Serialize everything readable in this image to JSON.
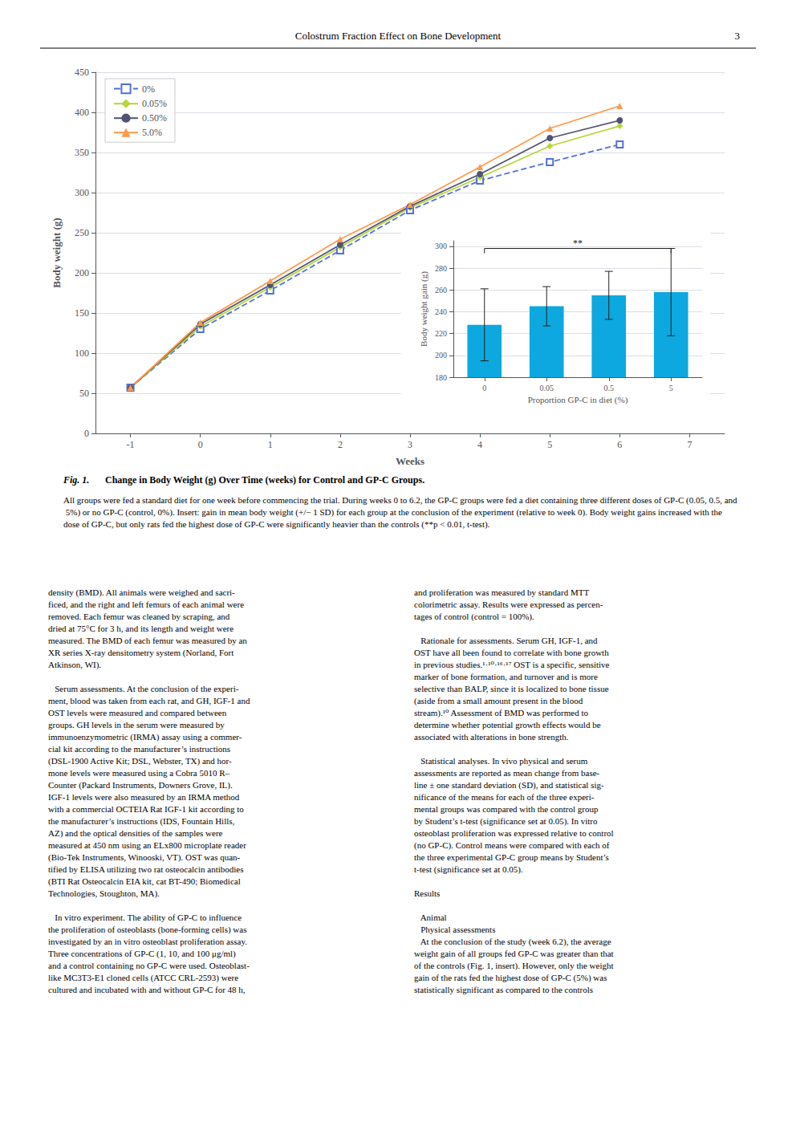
{
  "page_title": "Colostrum Fraction Effect on Bone Development",
  "page_number": "3",
  "chart_data": [
    {
      "type": "line",
      "xlabel": "Weeks",
      "ylabel": "Body weight (g)",
      "x": [
        -1,
        0,
        1,
        2,
        3,
        4,
        5,
        6
      ],
      "series": [
        {
          "name": "0%",
          "values": [
            57,
            130,
            178,
            228,
            278,
            315,
            338,
            360
          ],
          "marker": "open_square",
          "line_style": "dashed"
        },
        {
          "name": "0.05%",
          "values": [
            57,
            133,
            182,
            232,
            281,
            319,
            358,
            383
          ],
          "marker": "diamond",
          "line_style": "solid"
        },
        {
          "name": "0.50%",
          "values": [
            57,
            136,
            185,
            235,
            283,
            323,
            368,
            390
          ],
          "marker": "circle",
          "line_style": "solid"
        },
        {
          "name": "5.0%",
          "values": [
            57,
            138,
            190,
            242,
            285,
            332,
            380,
            408
          ],
          "marker": "triangle",
          "line_style": "solid"
        }
      ],
      "xlim": [
        -1.5,
        7.5
      ],
      "xticks": [
        -1,
        0,
        1,
        2,
        3,
        4,
        5,
        6,
        7
      ],
      "ylim": [
        0,
        450
      ],
      "yticks": [
        0,
        50,
        100,
        150,
        200,
        250,
        300,
        350,
        400,
        450
      ],
      "grid": true,
      "legend": "upper left"
    },
    {
      "type": "bar",
      "xlabel": "Proportion GP-C in diet (%)",
      "ylabel": "Body weight gain (g)",
      "categories": [
        "0",
        "0.05",
        "0.5",
        "5"
      ],
      "values": [
        228,
        245,
        255,
        258
      ],
      "errors": [
        33,
        18,
        22,
        40
      ],
      "ylim": [
        180,
        305
      ],
      "yticks": [
        180,
        200,
        220,
        240,
        260,
        280,
        300
      ],
      "grid": true,
      "annotations": [
        {
          "text": "**",
          "from": "0",
          "to": "5",
          "y": 298
        }
      ]
    }
  ],
  "fig_label": "Fig. 1.",
  "fig_caption_bold": "Change in Body Weight (g) Over Time (weeks) for Control and GP-C Groups.",
  "fig_caption_normal": "All groups were fed a standard diet for one week before commencing the trial. During weeks 0 to 6.2, the GP-C groups were fed a diet containing three different doses of GP-C (0.05, 0.5, and 5%) or no GP-C (control, 0%). Insert: gain in mean body weight (+/− 1 SD) for each group at the conclusion of the experiment (relative to week 0). Body weight gains increased with the dose of GP-C, but only rats fed the highest dose of GP-C were significantly heavier than the controls (**p < 0.01, t-test).",
  "body_text_left": "density (BMD). All animals were weighed and sacri-\nficed, and the right and left femurs of each animal were\nremoved. Each femur was cleaned by scraping, and\ndried at 75°C for 3 h, and its length and weight were\nmeasured. The BMD of each femur was measured by an\nXR series X-ray densitometry system (Norland, Fort\nAtkinson, WI).\n\n   Serum assessments. At the conclusion of the experi-\nment, blood was taken from each rat, and GH, IGF-1 and\nOST levels were measured and compared between\ngroups. GH levels in the serum were measured by\nimmunoenzymometric (IRMA) assay using a commer-\ncial kit according to the manufacturer’s instructions\n(DSL-1900 Active Kit; DSL, Webster, TX) and hor-\nmone levels were measured using a Cobra 5010 R–\nCounter (Packard Instruments, Downers Grove, IL).\nIGF-1 levels were also measured by an IRMA method\nwith a commercial OCTEIA Rat IGF-1 kit according to\nthe manufacturer’s instructions (IDS, Fountain Hills,\nAZ) and the optical densities of the samples were\nmeasured at 450 nm using an ELx800 microplate reader\n(Bio-Tek Instruments, Winooski, VT). OST was quan-\ntified by ELISA utilizing two rat osteocalcin antibodies\n(BTI Rat Osteocalcin EIA kit, cat BT-490; Biomedical\nTechnologies, Stoughton, MA).\n\n   In vitro experiment. The ability of GP-C to influence\nthe proliferation of osteoblasts (bone-forming cells) was\ninvestigated by an in vitro osteoblast proliferation assay.\nThree concentrations of GP-C (1, 10, and 100 μg/ml)\nand a control containing no GP-C were used. Osteoblast-\nlike MC3T3-E1 cloned cells (ATCC CRL-2593) were\ncultured and incubated with and without GP-C for 48 h,",
  "body_text_right": "and proliferation was measured by standard MTT\ncolorimetric assay. Results were expressed as percen-\ntages of control (control = 100%).\n\n   Rationale for assessments. Serum GH, IGF-1, and\nOST have all been found to correlate with bone growth\nin previous studies.¹·¹⁰·¹⁶·¹⁷ OST is a specific, sensitive\nmarker of bone formation, and turnover and is more\nselective than BALP, since it is localized to bone tissue\n(aside from a small amount present in the blood\nstream).¹⁰ Assessment of BMD was performed to\ndetermine whether potential growth effects would be\nassociated with alterations in bone strength.\n\n   Statistical analyses. In vivo physical and serum\nassessments are reported as mean change from base-\nline ± one standard deviation (SD), and statistical sig-\nnificance of the means for each of the three experi-\nmental groups was compared with the control group\nby Student’s t-test (significance set at 0.05). In vitro\nosteoblast proliferation was expressed relative to control\n(no GP-C). Control means were compared with each of\nthe three experimental GP-C group means by Student’s\nt-test (significance set at 0.05).\n\nResults\n\n   Animal\n   Physical assessments\n   At the conclusion of the study (week 6.2), the average\nweight gain of all groups fed GP-C was greater than that\nof the controls (Fig. 1, insert). However, only the weight\ngain of the rats fed the highest dose of GP-C (5%) was\nstatistically significant as compared to the controls"
}
